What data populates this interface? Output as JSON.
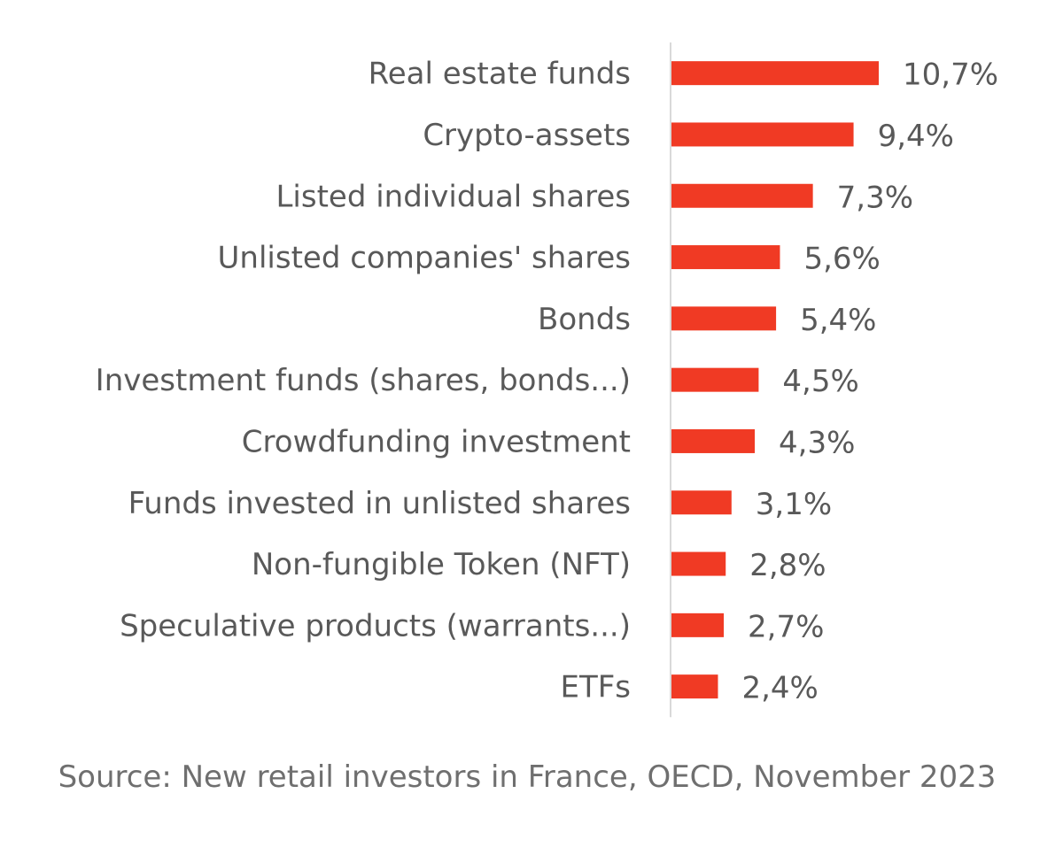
{
  "chart_data": {
    "type": "bar",
    "orientation": "horizontal",
    "categories": [
      "Real estate funds",
      "Crypto-assets",
      "Listed individual shares",
      "Unlisted companies' shares",
      "Bonds",
      "Investment funds (shares, bonds...)",
      "Crowdfunding investment",
      "Funds invested in unlisted shares",
      "Non-fungible Token (NFT)",
      "Speculative products (warrants...)",
      "ETFs"
    ],
    "values": [
      10.7,
      9.4,
      7.3,
      5.6,
      5.4,
      4.5,
      4.3,
      3.1,
      2.8,
      2.7,
      2.4
    ],
    "value_labels": [
      "10,7%",
      "9,4%",
      "7,3%",
      "5,6%",
      "5,4%",
      "4,5%",
      "4,3%",
      "3,1%",
      "2,8%",
      "2,7%",
      "2,4%"
    ],
    "title": "",
    "xlabel": "",
    "ylabel": "",
    "xlim": [
      0,
      10.7
    ],
    "grid": false,
    "legend": "none",
    "bar_color": "#f03a24",
    "axis_color": "#d9d9d9"
  },
  "source": {
    "text": "Source: New retail investors in France, OECD, November 2023"
  }
}
